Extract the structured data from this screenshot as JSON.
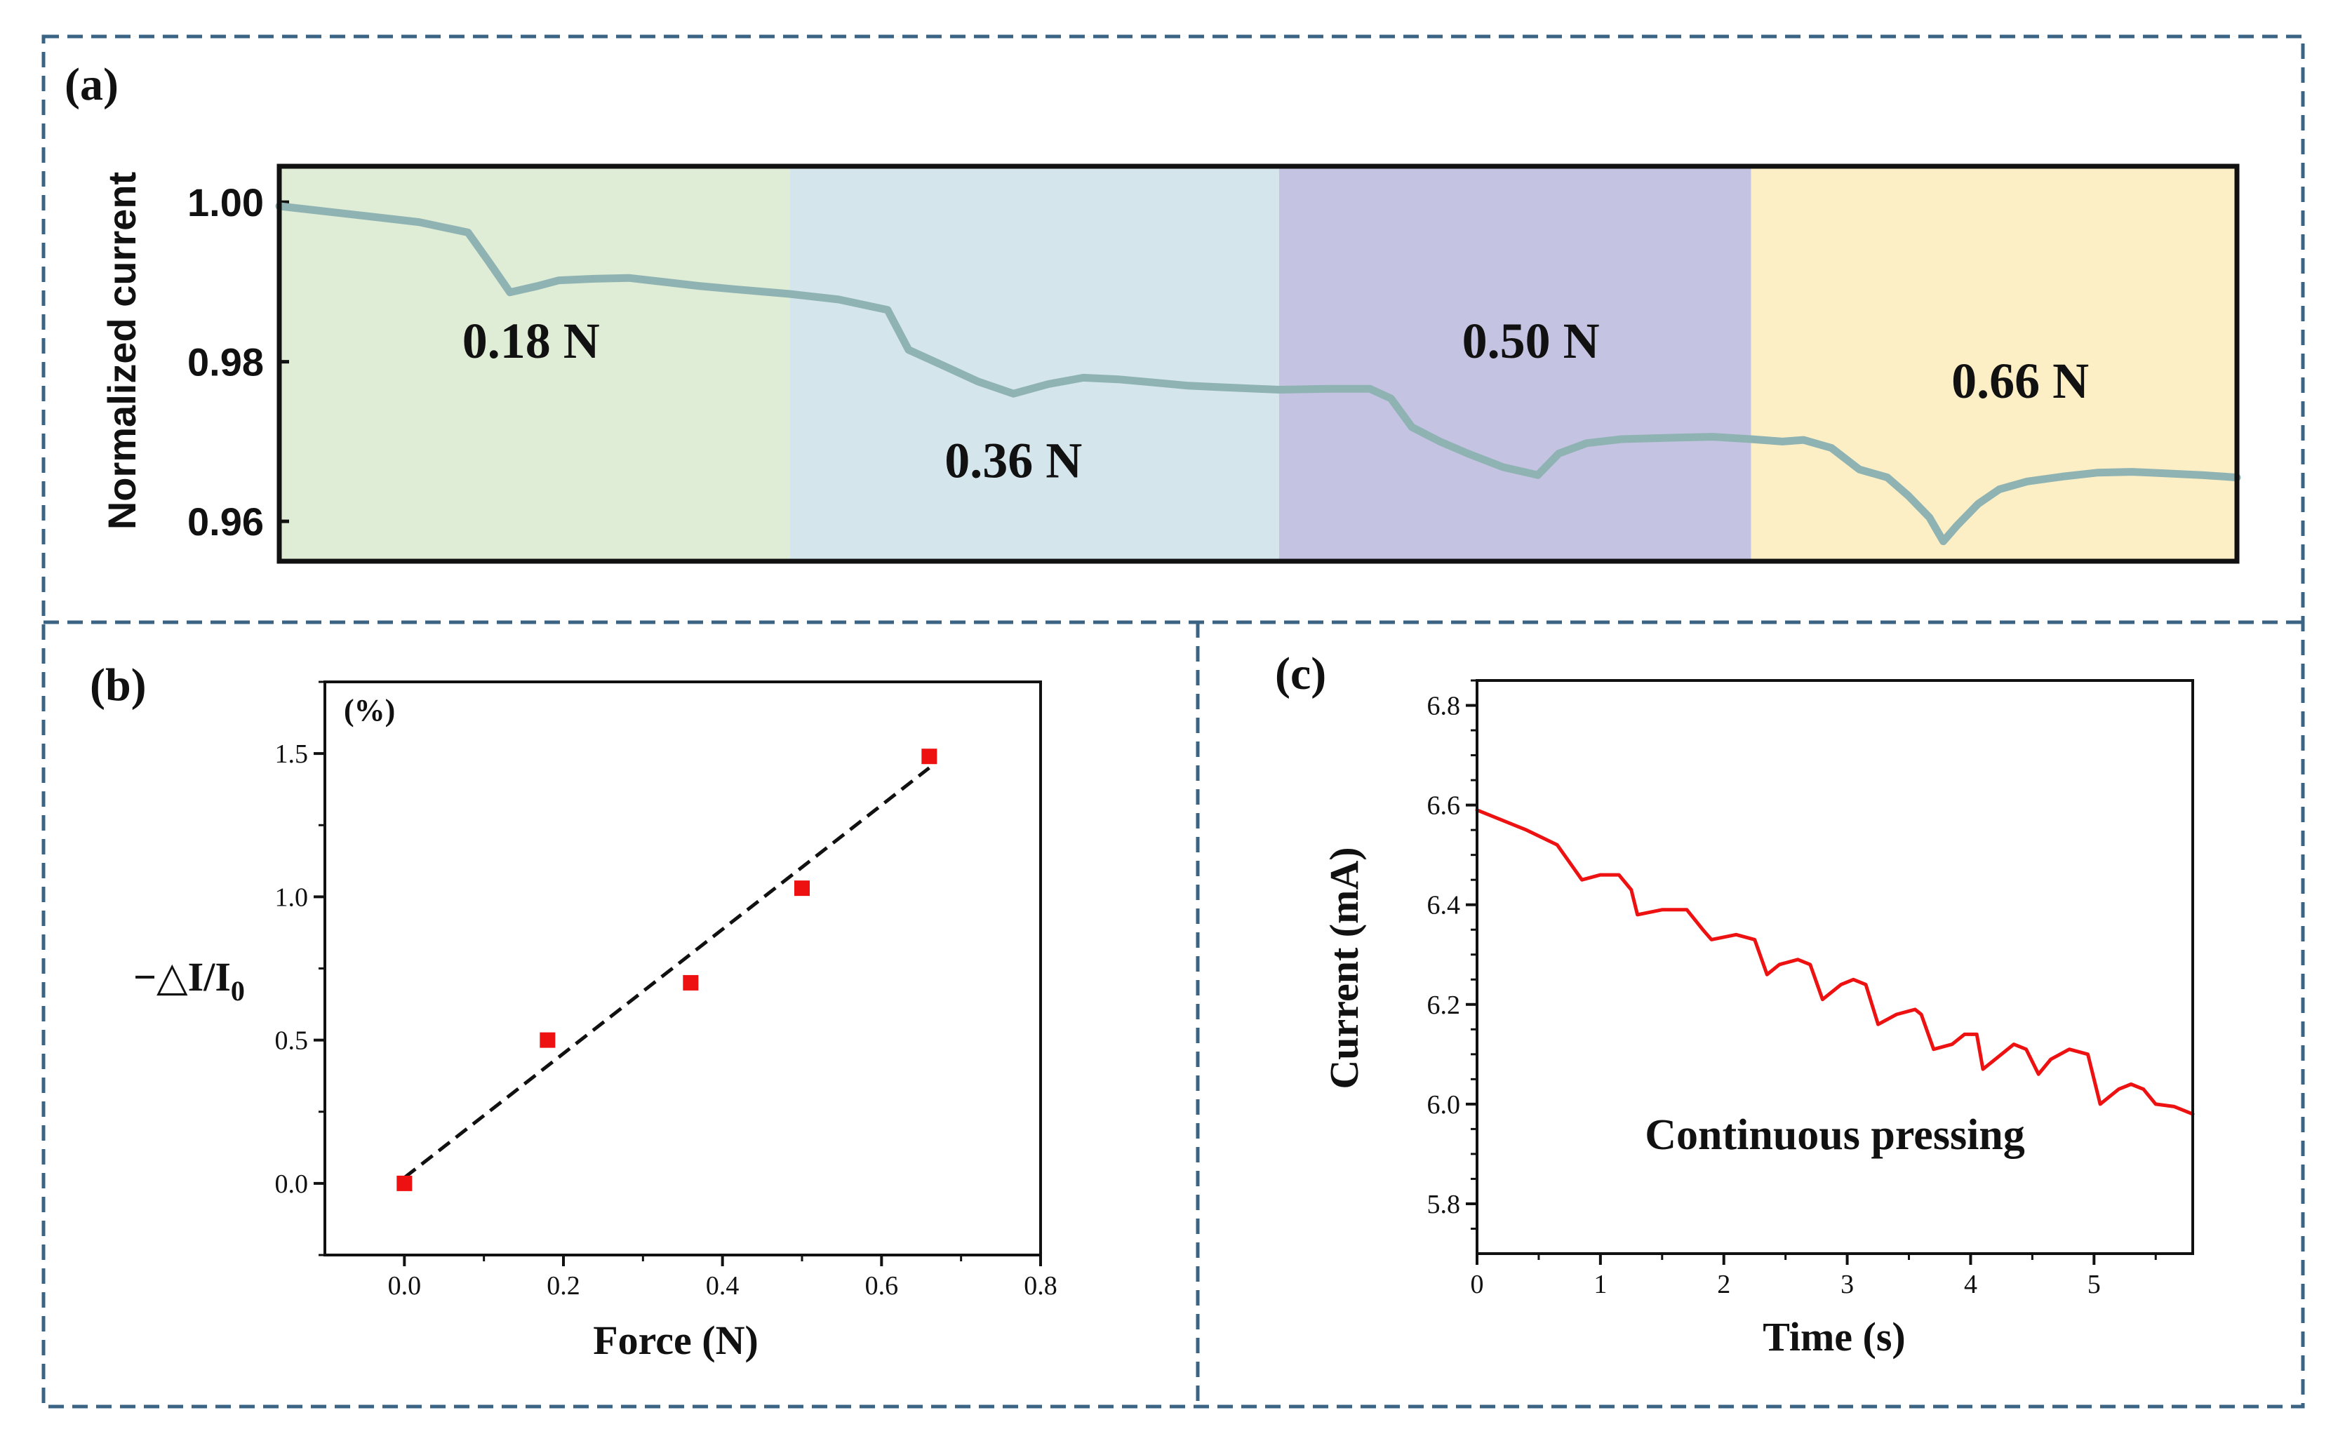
{
  "figure": {
    "panel_labels": [
      "(a)",
      "(b)",
      "(c)"
    ],
    "colors": {
      "border": "#3a6384",
      "trace_a": "#8fb3b3",
      "trace_c": "#ee1111",
      "marker_b": "#ee1111",
      "fit_line": "#111111"
    }
  },
  "chart_data": [
    {
      "id": "a",
      "type": "line",
      "ylabel": "Normalized current",
      "ylim": [
        0.955,
        1.0045
      ],
      "xlim": [
        0,
        2.8
      ],
      "x_label": "",
      "yticks": [
        0.96,
        0.98,
        1.0
      ],
      "ytick_labels": [
        "0.96",
        "0.98",
        "1.00"
      ],
      "regions": [
        {
          "label": "0.18 N",
          "x_start": 0,
          "x_end": 0.73,
          "color": "#dfecd6",
          "label_x": 0.36,
          "label_y": 0.9805
        },
        {
          "label": "0.36 N",
          "x_start": 0.73,
          "x_end": 1.43,
          "color": "#d5e5ec",
          "label_x": 1.05,
          "label_y": 0.9655
        },
        {
          "label": "0.50 N",
          "x_start": 1.43,
          "x_end": 2.105,
          "color": "#c4c3e2",
          "label_x": 1.79,
          "label_y": 0.9805
        },
        {
          "label": "0.66 N",
          "x_start": 2.105,
          "x_end": 2.8,
          "color": "#fcefc6",
          "label_x": 2.49,
          "label_y": 0.9755
        }
      ],
      "series": [
        {
          "name": "Normalized current",
          "x": [
            0,
            0.1,
            0.2,
            0.27,
            0.3,
            0.33,
            0.37,
            0.4,
            0.45,
            0.5,
            0.55,
            0.6,
            0.65,
            0.73,
            0.8,
            0.87,
            0.9,
            0.95,
            1.0,
            1.05,
            1.1,
            1.15,
            1.2,
            1.25,
            1.3,
            1.35,
            1.43,
            1.5,
            1.56,
            1.59,
            1.62,
            1.66,
            1.7,
            1.75,
            1.8,
            1.83,
            1.87,
            1.92,
            2.0,
            2.05,
            2.105,
            2.15,
            2.18,
            2.22,
            2.26,
            2.3,
            2.33,
            2.36,
            2.38,
            2.4,
            2.43,
            2.46,
            2.5,
            2.55,
            2.6,
            2.65,
            2.7,
            2.75,
            2.8
          ],
          "y": [
            0.9995,
            0.9985,
            0.9975,
            0.9962,
            0.9925,
            0.9887,
            0.9895,
            0.9902,
            0.9904,
            0.9905,
            0.99,
            0.9895,
            0.9891,
            0.9885,
            0.9878,
            0.9865,
            0.9815,
            0.9795,
            0.9775,
            0.976,
            0.9772,
            0.978,
            0.9778,
            0.9774,
            0.977,
            0.9768,
            0.9765,
            0.9766,
            0.9766,
            0.9754,
            0.9718,
            0.97,
            0.9685,
            0.9668,
            0.9658,
            0.9685,
            0.9698,
            0.9703,
            0.9705,
            0.9706,
            0.9703,
            0.97,
            0.9702,
            0.9692,
            0.9665,
            0.9655,
            0.9632,
            0.9605,
            0.9575,
            0.9595,
            0.9622,
            0.964,
            0.965,
            0.9656,
            0.9661,
            0.9662,
            0.966,
            0.9658,
            0.9655
          ]
        }
      ]
    },
    {
      "id": "b",
      "type": "scatter",
      "xlabel": "Force (N)",
      "ylabel_main": "−△I/I",
      "ylabel_sub": "0",
      "yunit_label": "(%)",
      "xlim": [
        -0.1,
        0.8
      ],
      "ylim": [
        -0.25,
        1.75
      ],
      "xticks": [
        0.0,
        0.2,
        0.4,
        0.6,
        0.8
      ],
      "xtick_labels": [
        "0.0",
        "0.2",
        "0.4",
        "0.6",
        "0.8"
      ],
      "yticks": [
        0.0,
        0.5,
        1.0,
        1.5
      ],
      "ytick_labels": [
        "0.0",
        "0.5",
        "1.0",
        "1.5"
      ],
      "series": [
        {
          "name": "measured",
          "x": [
            0.0,
            0.18,
            0.36,
            0.5,
            0.66
          ],
          "y": [
            0.0,
            0.5,
            0.7,
            1.03,
            1.49
          ]
        }
      ],
      "fit": {
        "x": [
          0.0,
          0.66
        ],
        "y": [
          0.02,
          1.45
        ],
        "style": "dashed"
      }
    },
    {
      "id": "c",
      "type": "line",
      "xlabel": "Time (s)",
      "ylabel": "Current (mA)",
      "annotation": "Continuous pressing",
      "annotation_x": 2.9,
      "annotation_y": 5.91,
      "xlim": [
        0,
        5.8
      ],
      "ylim": [
        5.7,
        6.85
      ],
      "xticks": [
        0,
        1,
        2,
        3,
        4,
        5
      ],
      "xtick_labels": [
        "0",
        "1",
        "2",
        "3",
        "4",
        "5"
      ],
      "yticks": [
        5.8,
        6.0,
        6.2,
        6.4,
        6.6,
        6.8
      ],
      "ytick_labels": [
        "5.8",
        "6.0",
        "6.2",
        "6.4",
        "6.6",
        "6.8"
      ],
      "series": [
        {
          "name": "Current",
          "x": [
            0,
            0.4,
            0.65,
            0.85,
            1.0,
            1.15,
            1.25,
            1.3,
            1.5,
            1.7,
            1.83,
            1.9,
            2.1,
            2.25,
            2.35,
            2.45,
            2.6,
            2.7,
            2.8,
            2.95,
            3.05,
            3.15,
            3.25,
            3.4,
            3.55,
            3.6,
            3.7,
            3.85,
            3.95,
            4.05,
            4.1,
            4.25,
            4.35,
            4.45,
            4.55,
            4.65,
            4.8,
            4.95,
            5.05,
            5.2,
            5.3,
            5.4,
            5.5,
            5.65,
            5.8
          ],
          "y": [
            6.59,
            6.55,
            6.52,
            6.45,
            6.46,
            6.46,
            6.43,
            6.38,
            6.39,
            6.39,
            6.35,
            6.33,
            6.34,
            6.33,
            6.26,
            6.28,
            6.29,
            6.28,
            6.21,
            6.24,
            6.25,
            6.24,
            6.16,
            6.18,
            6.19,
            6.18,
            6.11,
            6.12,
            6.14,
            6.14,
            6.07,
            6.1,
            6.12,
            6.11,
            6.06,
            6.09,
            6.11,
            6.1,
            6.0,
            6.03,
            6.04,
            6.03,
            6.0,
            5.995,
            5.98
          ]
        }
      ]
    }
  ]
}
